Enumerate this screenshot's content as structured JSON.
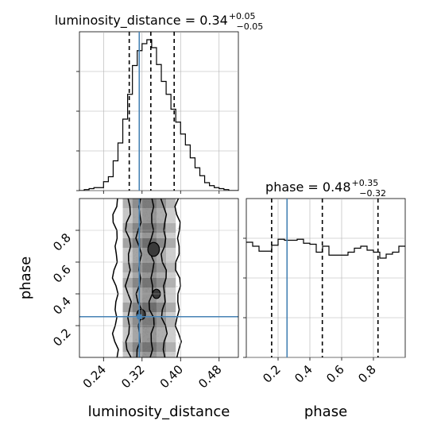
{
  "chart_data": [
    {
      "type": "histogram",
      "panel": "luminosity_distance 1D marginal",
      "title_param": "luminosity_distance",
      "median": "0.34",
      "err_plus": "+0.05",
      "err_minus": "−0.05",
      "xlim": [
        0.19,
        0.52
      ],
      "bin_edges": [
        0.19,
        0.2,
        0.21,
        0.22,
        0.23,
        0.24,
        0.25,
        0.26,
        0.27,
        0.28,
        0.29,
        0.3,
        0.31,
        0.32,
        0.33,
        0.34,
        0.35,
        0.36,
        0.37,
        0.38,
        0.39,
        0.4,
        0.41,
        0.42,
        0.43,
        0.44,
        0.45,
        0.46,
        0.47,
        0.48,
        0.49,
        0.5,
        0.51,
        0.52
      ],
      "counts": [
        0,
        1,
        2,
        3,
        3,
        9,
        14,
        30,
        48,
        72,
        97,
        126,
        141,
        148,
        152,
        144,
        127,
        110,
        97,
        82,
        69,
        57,
        46,
        33,
        23,
        15,
        8,
        5,
        3,
        2,
        1,
        0,
        0
      ],
      "count_max": 160,
      "quantile_lines": [
        0.2934,
        0.3382,
        0.3867
      ],
      "truth": 0.3142,
      "ytick_counts": [
        0,
        40,
        80,
        120
      ],
      "grid": true
    },
    {
      "type": "histogram",
      "panel": "phase 1D marginal",
      "title_param": "phase",
      "median": "0.48",
      "err_plus": "+0.35",
      "err_minus": "−0.32",
      "xlim": [
        0.0,
        1.0
      ],
      "bin_edges": [
        0.0,
        0.04,
        0.08,
        0.12,
        0.16,
        0.2,
        0.24,
        0.28,
        0.32,
        0.36,
        0.4,
        0.44,
        0.48,
        0.52,
        0.56,
        0.6,
        0.64,
        0.68,
        0.72,
        0.76,
        0.8,
        0.84,
        0.88,
        0.92,
        0.96,
        1.0
      ],
      "counts": [
        116,
        112,
        107,
        107,
        113,
        119,
        118,
        118,
        119,
        115,
        114,
        106,
        112,
        103,
        103,
        103,
        106,
        110,
        112,
        108,
        106,
        100,
        104,
        106,
        112
      ],
      "count_max": 160,
      "quantile_lines": [
        0.1594,
        0.4784,
        0.8287
      ],
      "truth": 0.2563,
      "ytick_counts": [
        0,
        40,
        80,
        120
      ],
      "grid": true
    },
    {
      "type": "heatmap",
      "panel": "2D posterior phase vs luminosity_distance",
      "xlabel": "luminosity_distance",
      "ylabel": "phase",
      "xlim": [
        0.19,
        0.52
      ],
      "ylim": [
        0.0,
        1.0
      ],
      "xticks": [
        "0.24",
        "0.32",
        "0.40",
        "0.48"
      ],
      "xtick_values": [
        0.24,
        0.32,
        0.4,
        0.48
      ],
      "yticks": [
        "0.2",
        "0.4",
        "0.6",
        "0.8"
      ],
      "ytick_values": [
        0.2,
        0.4,
        0.6,
        0.8
      ],
      "density_columns": [
        {
          "x0": 0.28,
          "x1": 0.3,
          "level": 0.35
        },
        {
          "x0": 0.3,
          "x1": 0.32,
          "level": 0.55
        },
        {
          "x0": 0.32,
          "x1": 0.35,
          "level": 0.65
        },
        {
          "x0": 0.35,
          "x1": 0.37,
          "level": 0.5
        },
        {
          "x0": 0.37,
          "x1": 0.39,
          "level": 0.3
        }
      ],
      "contour_x": [
        0.265,
        0.292,
        0.314,
        0.34,
        0.366,
        0.395
      ],
      "dark_spots": [
        {
          "x": 0.344,
          "y": 0.68,
          "r": 0.012
        },
        {
          "x": 0.318,
          "y": 0.27,
          "r": 0.009
        },
        {
          "x": 0.35,
          "y": 0.4,
          "r": 0.008
        }
      ],
      "truth_x": 0.3142,
      "truth_y": 0.2563,
      "grid": true
    }
  ],
  "colors": {
    "truth_line": "#4682b4",
    "hist_line": "#000000",
    "grid": "#b0b0b0",
    "density_dark": "#3a3a3a"
  }
}
